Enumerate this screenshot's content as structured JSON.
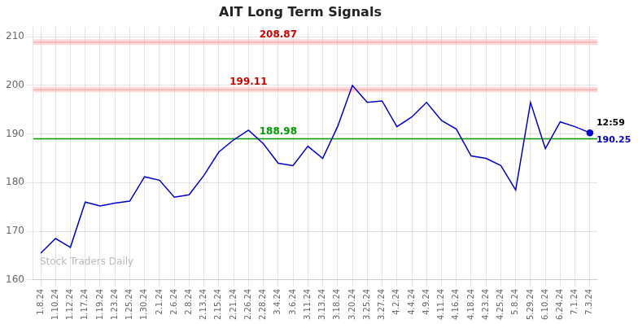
{
  "chart_data": {
    "type": "line",
    "title": "AIT Long Term Signals",
    "categories": [
      "1.8.24",
      "1.10.24",
      "1.12.24",
      "1.17.24",
      "1.19.24",
      "1.23.24",
      "1.25.24",
      "1.30.24",
      "2.1.24",
      "2.6.24",
      "2.8.24",
      "2.13.24",
      "2.15.24",
      "2.21.24",
      "2.26.24",
      "2.28.24",
      "3.4.24",
      "3.6.24",
      "3.11.24",
      "3.13.24",
      "3.18.24",
      "3.20.24",
      "3.25.24",
      "3.27.24",
      "4.2.24",
      "4.4.24",
      "4.9.24",
      "4.11.24",
      "4.16.24",
      "4.18.24",
      "4.23.24",
      "4.25.24",
      "5.8.24",
      "5.29.24",
      "6.10.24",
      "6.24.24",
      "7.1.24",
      "7.3.24"
    ],
    "values": [
      165.5,
      168.5,
      166.7,
      176.0,
      175.2,
      175.8,
      176.2,
      181.2,
      180.5,
      177.0,
      177.5,
      181.5,
      186.3,
      188.8,
      190.8,
      188.0,
      184.0,
      183.5,
      187.5,
      185.0,
      191.5,
      200.0,
      196.5,
      196.8,
      191.5,
      193.5,
      196.5,
      192.8,
      191.0,
      185.5,
      185.0,
      183.5,
      178.5,
      196.5,
      187.0,
      192.5,
      191.5,
      190.25
    ],
    "color": "#0000cc",
    "ylim": [
      160,
      212
    ],
    "yticks": [
      160,
      170,
      180,
      190,
      200,
      210
    ],
    "grid": true,
    "lines": [
      {
        "y": 208.87,
        "color": "#ff9999",
        "band": [
          208.3,
          209.5
        ],
        "label": "208.87",
        "label_color": "#cc0000"
      },
      {
        "y": 199.11,
        "color": "#ff9999",
        "band": [
          198.6,
          199.7
        ],
        "label": "199.11",
        "label_color": "#cc0000"
      },
      {
        "y": 189.0,
        "color": "#009900",
        "label": "188.98",
        "label_color": "#009900"
      }
    ],
    "last_point": {
      "time": "12:59",
      "price_label": "190.25"
    },
    "watermark": "Stock Traders Daily"
  }
}
